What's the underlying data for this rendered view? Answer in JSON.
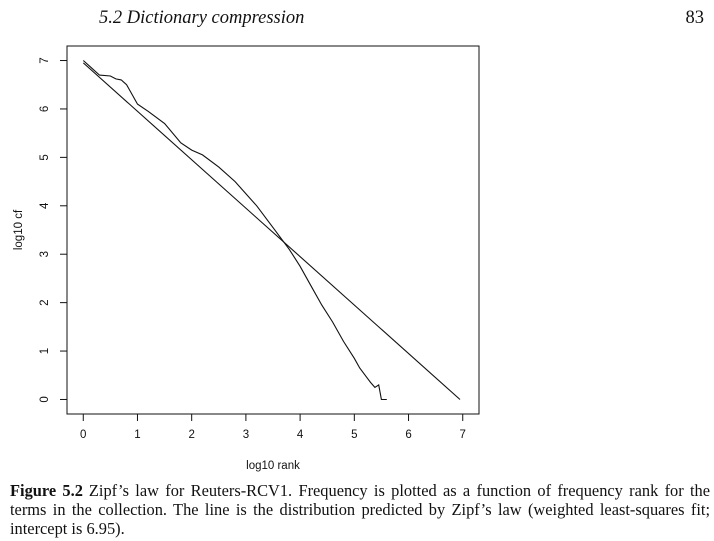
{
  "header": {
    "running_title": "5.2 Dictionary compression",
    "page_number": "83"
  },
  "figure": {
    "label": "Figure 5.2",
    "caption": "Zipf’s law for Reuters-RCV1. Frequency is plotted as a function of frequency rank for the terms in the collection. The line is the distribution predicted by Zipf’s law (weighted least-squares fit; intercept is 6.95)."
  },
  "chart_data": {
    "type": "line",
    "xlabel": "log10 rank",
    "ylabel": "log10 cf",
    "xlim": [
      -0.3,
      7.3
    ],
    "ylim": [
      -0.3,
      7.3
    ],
    "x_ticks": [
      "0",
      "1",
      "2",
      "3",
      "4",
      "5",
      "6",
      "7"
    ],
    "y_ticks": [
      "0",
      "1",
      "2",
      "3",
      "4",
      "5",
      "6",
      "7"
    ],
    "grid": false,
    "legend": "none",
    "series": [
      {
        "kind": "empirical",
        "x": [
          0,
          0.15,
          0.3,
          0.5,
          0.6,
          0.7,
          0.75,
          0.8,
          1.0,
          1.2,
          1.5,
          1.8,
          2.0,
          2.2,
          2.5,
          2.8,
          3.0,
          3.2,
          3.5,
          3.8,
          4.0,
          4.2,
          4.4,
          4.6,
          4.8,
          5.0,
          5.1,
          5.2,
          5.3,
          5.38,
          5.45,
          5.5,
          5.6
        ],
        "y": [
          7.0,
          6.85,
          6.7,
          6.68,
          6.62,
          6.6,
          6.55,
          6.5,
          6.1,
          5.95,
          5.7,
          5.3,
          5.15,
          5.05,
          4.8,
          4.5,
          4.25,
          4.0,
          3.55,
          3.1,
          2.75,
          2.35,
          1.95,
          1.6,
          1.2,
          0.85,
          0.65,
          0.5,
          0.35,
          0.25,
          0.3,
          0.0,
          0.0
        ]
      },
      {
        "kind": "zipf-fit",
        "intercept": 6.95,
        "slope": -1,
        "x": [
          0,
          6.95
        ],
        "y": [
          6.95,
          0
        ]
      }
    ]
  }
}
